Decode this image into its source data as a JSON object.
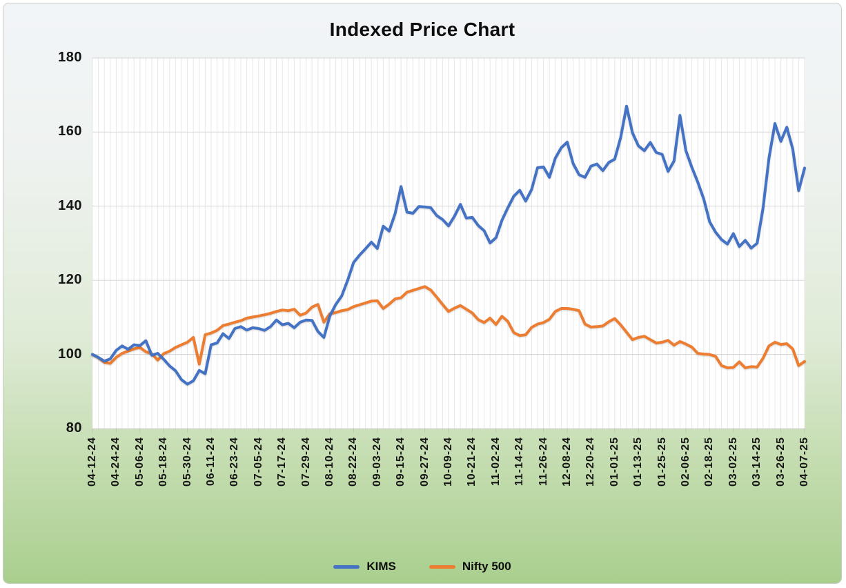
{
  "title": "Indexed Price Chart",
  "legend": [
    {
      "name": "KIMS",
      "color": "#4472C4"
    },
    {
      "name": "Nifty 500",
      "color": "#ED7D31"
    }
  ],
  "y_axis": {
    "ticks": [
      "180",
      "160",
      "140",
      "120",
      "100",
      "80"
    ],
    "min": 80,
    "max": 180
  },
  "x_axis": {
    "labels": [
      "04-12-24",
      "04-24-24",
      "05-06-24",
      "05-18-24",
      "05-30-24",
      "06-11-24",
      "06-23-24",
      "07-05-24",
      "07-17-24",
      "07-29-24",
      "08-10-24",
      "08-22-24",
      "09-03-24",
      "09-15-24",
      "09-27-24",
      "10-09-24",
      "10-21-24",
      "11-02-24",
      "11-14-24",
      "11-26-24",
      "12-08-24",
      "12-20-24",
      "01-01-25",
      "01-13-25",
      "01-25-25",
      "02-06-25",
      "02-18-25",
      "03-02-25",
      "03-14-25",
      "03-26-25",
      "04-07-25"
    ],
    "label_every_n_points": 4
  },
  "chart_data": {
    "type": "line",
    "title": "Indexed Price Chart",
    "xlabel": "",
    "ylabel": "",
    "ylim": [
      80,
      180
    ],
    "grid": true,
    "legend_position": "bottom",
    "categories": [
      "04-12-24",
      "04-24-24",
      "05-06-24",
      "05-18-24",
      "05-30-24",
      "06-11-24",
      "06-23-24",
      "07-05-24",
      "07-17-24",
      "07-29-24",
      "08-10-24",
      "08-22-24",
      "09-03-24",
      "09-15-24",
      "09-27-24",
      "10-09-24",
      "10-21-24",
      "11-02-24",
      "11-14-24",
      "11-26-24",
      "12-08-24",
      "12-20-24",
      "01-01-25",
      "01-13-25",
      "01-25-25",
      "02-06-25",
      "02-18-25",
      "03-02-25",
      "03-14-25",
      "03-26-25",
      "04-07-25"
    ],
    "points_per_label_interval": 4,
    "series": [
      {
        "name": "KIMS",
        "color": "#4472C4",
        "values": [
          100,
          99.2,
          98.2,
          98.8,
          101.1,
          102.3,
          101.4,
          102.6,
          102.4,
          103.7,
          99.8,
          100.3,
          98.7,
          96.9,
          95.6,
          93.2,
          92,
          92.9,
          95.7,
          94.8,
          102.6,
          103.1,
          105.6,
          104.3,
          107,
          107.5,
          106.6,
          107.2,
          107,
          106.5,
          107.5,
          109.3,
          108,
          108.4,
          107.2,
          108.7,
          109.3,
          109.2,
          106.2,
          104.6,
          110.4,
          113.5,
          115.8,
          120,
          124.8,
          126.8,
          128.5,
          130.3,
          128.6,
          134.6,
          133.3,
          138,
          145.3,
          138.4,
          138.1,
          139.9,
          139.8,
          139.6,
          137.5,
          136.4,
          134.7,
          137.3,
          140.5,
          136.8,
          137,
          134.8,
          133.4,
          130.1,
          131.5,
          136.2,
          139.6,
          142.7,
          144.3,
          141.4,
          144.5,
          150.4,
          150.6,
          147.8,
          153,
          155.8,
          157.3,
          151.5,
          148.5,
          147.8,
          150.8,
          151.4,
          149.6,
          151.8,
          152.7,
          158.5,
          167,
          159.8,
          156.3,
          155,
          157.2,
          154.5,
          154,
          149.4,
          152.2,
          164.5,
          155,
          150.5,
          146.5,
          142,
          135.8,
          133,
          131,
          129.8,
          132.6,
          129.1,
          130.8,
          128.7,
          130,
          139.5,
          153,
          162.3,
          157.5,
          161.3,
          155.5,
          144.2,
          150.3
        ]
      },
      {
        "name": "Nifty 500",
        "color": "#ED7D31",
        "values": [
          100,
          99.1,
          97.9,
          97.6,
          99.2,
          100.3,
          100.9,
          101.5,
          101.9,
          100.7,
          100.2,
          98.5,
          100.2,
          100.9,
          101.9,
          102.6,
          103.3,
          104.6,
          97.4,
          105.3,
          105.8,
          106.5,
          107.8,
          108.2,
          108.7,
          109.1,
          109.8,
          110.1,
          110.4,
          110.7,
          111.1,
          111.6,
          112,
          111.8,
          112.2,
          110.6,
          111.2,
          112.8,
          113.5,
          108.7,
          111,
          111.3,
          111.8,
          112.1,
          112.9,
          113.4,
          113.9,
          114.4,
          114.5,
          112.4,
          113.6,
          115,
          115.3,
          116.8,
          117.3,
          117.8,
          118.3,
          117.4,
          115.5,
          113.5,
          111.6,
          112.5,
          113.2,
          112.2,
          111.2,
          109.4,
          108.6,
          109.8,
          108.1,
          110.3,
          108.9,
          105.9,
          105.1,
          105.3,
          107.3,
          108.2,
          108.6,
          109.5,
          111.6,
          112.4,
          112.4,
          112.2,
          111.8,
          108.2,
          107.4,
          107.5,
          107.7,
          108.8,
          109.7,
          108,
          106,
          104,
          104.6,
          104.9,
          104,
          103.1,
          103.3,
          103.8,
          102.5,
          103.5,
          102.8,
          102,
          100.3,
          100.1,
          100,
          99.5,
          97,
          96.4,
          96.5,
          98,
          96.4,
          96.7,
          96.6,
          99,
          102.3,
          103.3,
          102.7,
          102.9,
          101.5,
          97,
          98.1
        ]
      }
    ]
  },
  "colors": {
    "kims_line": "#4472C4",
    "nifty_line": "#ED7D31",
    "grid_horizontal": "#d6d6d6",
    "grid_vertical": "#e7e7e7",
    "plot_background": "#ffffff",
    "text": "#0d0d0d",
    "background_top": "#f2f5f8",
    "background_bottom": "#a9cf8e"
  }
}
